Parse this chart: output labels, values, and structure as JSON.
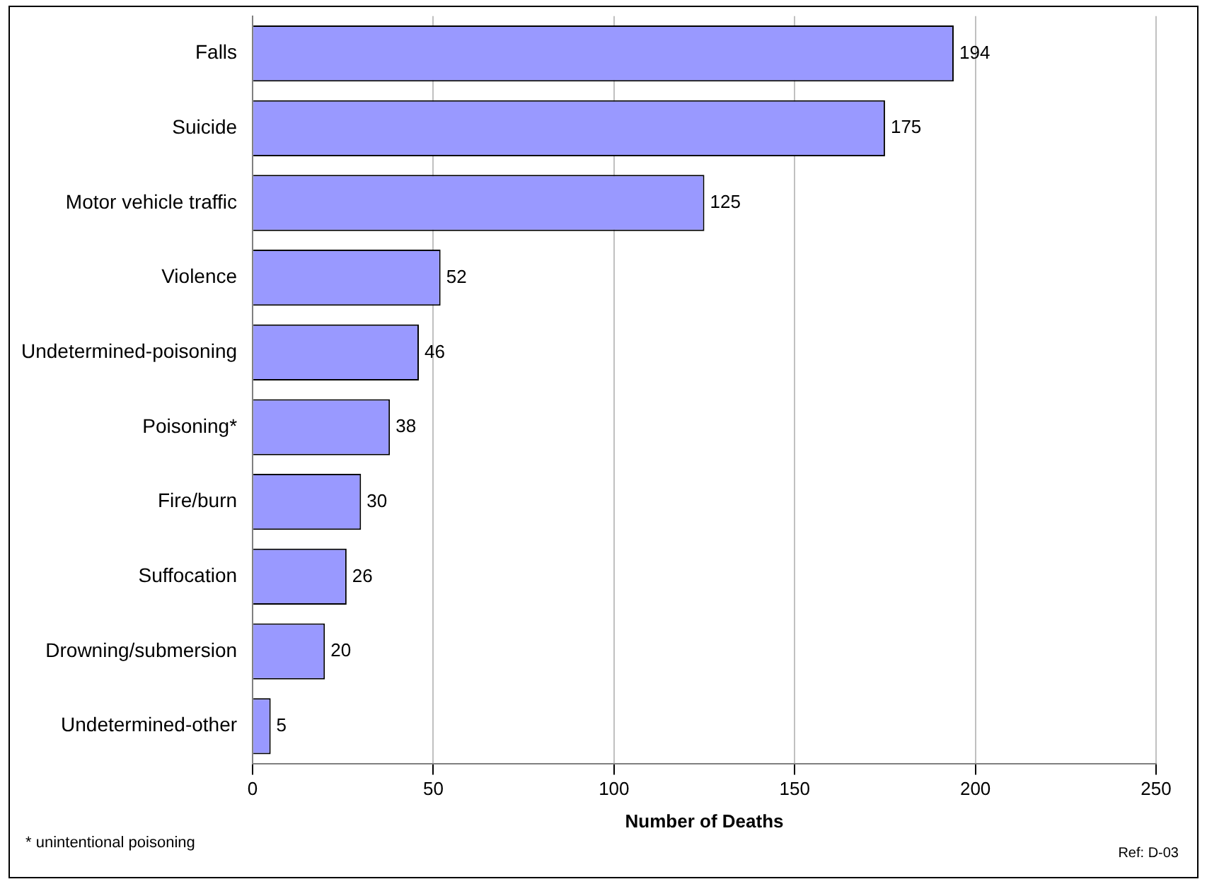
{
  "chart_data": {
    "type": "bar",
    "orientation": "horizontal",
    "xlabel": "Number of Deaths",
    "categories": [
      "Falls",
      "Suicide",
      "Motor vehicle traffic",
      "Violence",
      "Undetermined-poisoning",
      "Poisoning*",
      "Fire/burn",
      "Suffocation",
      "Drowning/submersion",
      "Undetermined-other"
    ],
    "values": [
      194,
      175,
      125,
      52,
      46,
      38,
      30,
      26,
      20,
      5
    ],
    "color": "#9999ff",
    "xlim": [
      0,
      250
    ],
    "xticks": [
      0,
      50,
      100,
      150,
      200,
      250
    ],
    "grid": "x",
    "legend": false,
    "data_labels": true,
    "annotations": [
      "* unintentional poisoning",
      "Ref: D-03"
    ]
  }
}
